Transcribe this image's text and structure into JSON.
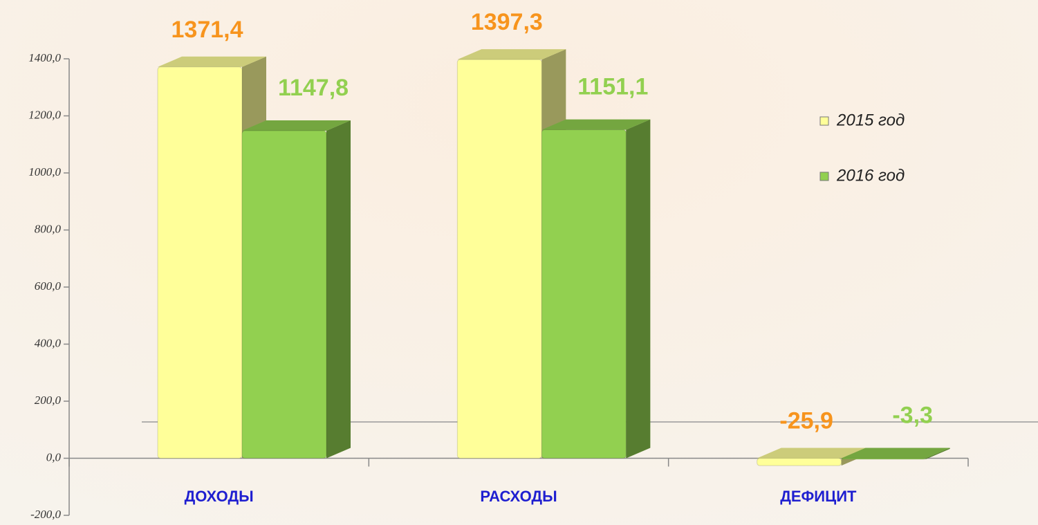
{
  "chart_data": {
    "type": "bar3d",
    "categories": [
      "ДОХОДЫ",
      "РАСХОДЫ",
      "ДЕФИЦИТ"
    ],
    "series": [
      {
        "name": "2015 год",
        "color": "#ffff99",
        "label_color": "#f7941d",
        "values": [
          1371.4,
          1397.3,
          -25.9
        ],
        "value_labels": [
          "1371,4",
          "1397,3",
          "-25,9"
        ]
      },
      {
        "name": "2016 год",
        "color": "#92d050",
        "label_color": "#92d050",
        "values": [
          1147.8,
          1151.1,
          -3.3
        ],
        "value_labels": [
          "1147,8",
          "1151,1",
          "-3,3"
        ]
      }
    ],
    "ylim": [
      -200,
      1400
    ],
    "yticks": [
      {
        "value": -200,
        "label": "-200,0"
      },
      {
        "value": 0,
        "label": "0,0"
      },
      {
        "value": 200,
        "label": "200,0"
      },
      {
        "value": 400,
        "label": "400,0"
      },
      {
        "value": 600,
        "label": "600,0"
      },
      {
        "value": 800,
        "label": "800,0"
      },
      {
        "value": 1000,
        "label": "1000,0"
      },
      {
        "value": 1200,
        "label": "1200,0"
      },
      {
        "value": 1400,
        "label": "1400,0"
      }
    ]
  }
}
